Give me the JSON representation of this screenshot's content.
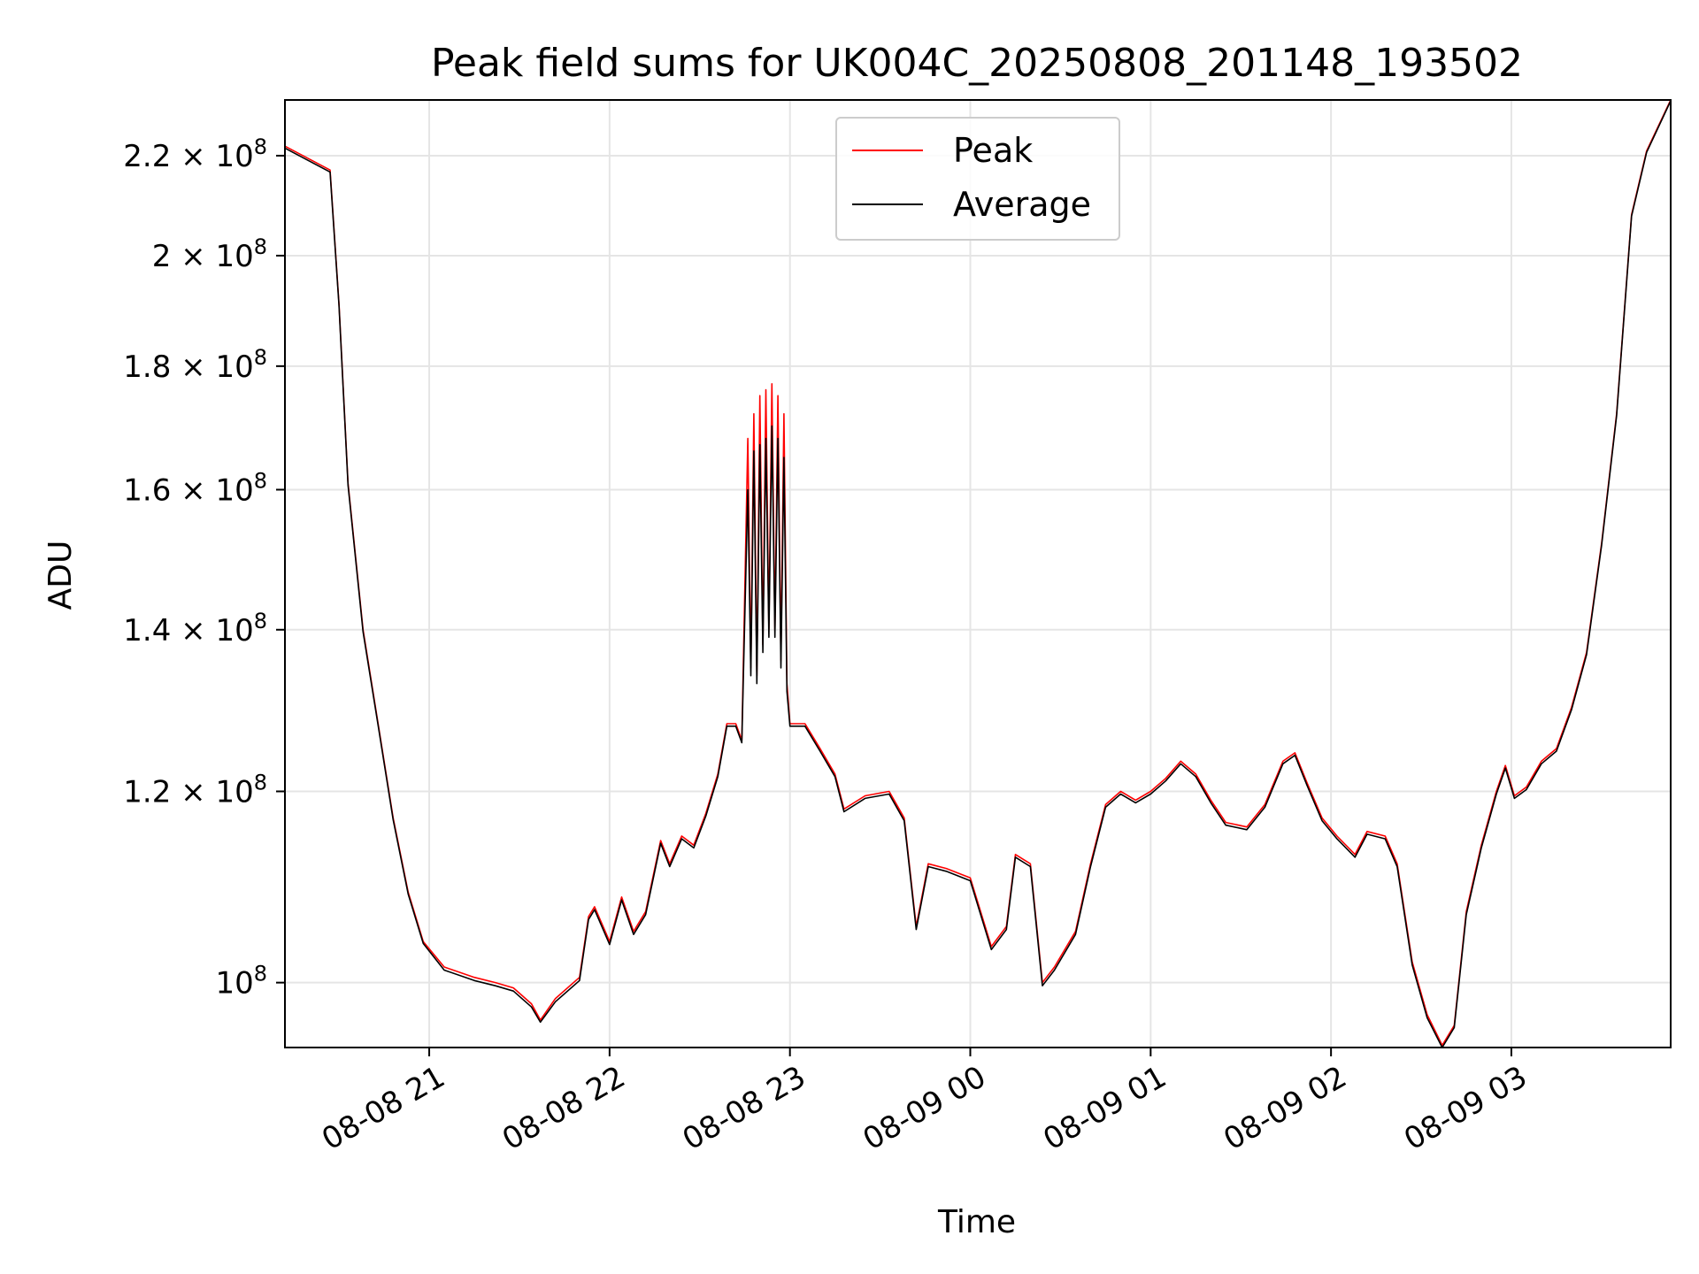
{
  "chart_data": {
    "type": "line",
    "title": "Peak field sums for UK004C_20250808_201148_193502",
    "xlabel": "Time",
    "ylabel": "ADU",
    "x_scale": "time",
    "y_scale": "log",
    "xlim": [
      "2025-08-08 20:12",
      "2025-08-09 03:53"
    ],
    "ylim": [
      94000000,
      232000000
    ],
    "grid": true,
    "legend": "top-center",
    "x_ticks": [
      {
        "value": "2025-08-08 21:00",
        "label": "08-08 21"
      },
      {
        "value": "2025-08-08 22:00",
        "label": "08-08 22"
      },
      {
        "value": "2025-08-08 23:00",
        "label": "08-08 23"
      },
      {
        "value": "2025-08-09 00:00",
        "label": "08-09 00"
      },
      {
        "value": "2025-08-09 01:00",
        "label": "08-09 01"
      },
      {
        "value": "2025-08-09 02:00",
        "label": "08-09 02"
      },
      {
        "value": "2025-08-09 03:00",
        "label": "08-09 03"
      }
    ],
    "y_ticks": [
      {
        "value": 100000000,
        "mantissa": "",
        "exponent": "8",
        "label": "10^8"
      },
      {
        "value": 120000000,
        "mantissa": "1.2",
        "exponent": "8",
        "label": "1.2 × 10^8"
      },
      {
        "value": 140000000,
        "mantissa": "1.4",
        "exponent": "8",
        "label": "1.4 × 10^8"
      },
      {
        "value": 160000000,
        "mantissa": "1.6",
        "exponent": "8",
        "label": "1.6 × 10^8"
      },
      {
        "value": 180000000,
        "mantissa": "1.8",
        "exponent": "8",
        "label": "1.8 × 10^8"
      },
      {
        "value": 200000000,
        "mantissa": "2",
        "exponent": "8",
        "label": "2 × 10^8"
      },
      {
        "value": 220000000,
        "mantissa": "2.2",
        "exponent": "8",
        "label": "2.2 × 10^8"
      }
    ],
    "series": [
      {
        "name": "Peak",
        "color": "#ff0000",
        "points": [
          [
            "2025-08-08 20:12",
            222000000
          ],
          [
            "2025-08-08 20:27",
            217000000
          ],
          [
            "2025-08-08 20:30",
            191000000
          ],
          [
            "2025-08-08 20:33",
            161000000
          ],
          [
            "2025-08-08 20:38",
            140000000
          ],
          [
            "2025-08-08 20:43",
            128000000
          ],
          [
            "2025-08-08 20:48",
            117000000
          ],
          [
            "2025-08-08 20:53",
            109000000
          ],
          [
            "2025-08-08 20:58",
            104000000
          ],
          [
            "2025-08-08 21:05",
            101500000
          ],
          [
            "2025-08-08 21:15",
            100500000
          ],
          [
            "2025-08-08 21:22",
            100000000
          ],
          [
            "2025-08-08 21:28",
            99500000
          ],
          [
            "2025-08-08 21:34",
            98000000
          ],
          [
            "2025-08-08 21:37",
            96500000
          ],
          [
            "2025-08-08 21:42",
            98500000
          ],
          [
            "2025-08-08 21:50",
            100500000
          ],
          [
            "2025-08-08 21:53",
            106500000
          ],
          [
            "2025-08-08 21:55",
            107500000
          ],
          [
            "2025-08-08 22:00",
            104000000
          ],
          [
            "2025-08-08 22:04",
            108500000
          ],
          [
            "2025-08-08 22:08",
            105000000
          ],
          [
            "2025-08-08 22:12",
            107000000
          ],
          [
            "2025-08-08 22:17",
            114500000
          ],
          [
            "2025-08-08 22:20",
            112000000
          ],
          [
            "2025-08-08 22:24",
            115000000
          ],
          [
            "2025-08-08 22:28",
            114000000
          ],
          [
            "2025-08-08 22:32",
            117500000
          ],
          [
            "2025-08-08 22:36",
            122000000
          ],
          [
            "2025-08-08 22:39",
            128000000
          ],
          [
            "2025-08-08 22:42",
            128000000
          ],
          [
            "2025-08-08 22:44",
            126000000
          ],
          [
            "2025-08-08 22:46",
            168000000
          ],
          [
            "2025-08-08 22:47",
            135000000
          ],
          [
            "2025-08-08 22:48",
            172000000
          ],
          [
            "2025-08-08 22:49",
            134000000
          ],
          [
            "2025-08-08 22:50",
            175000000
          ],
          [
            "2025-08-08 22:51",
            138000000
          ],
          [
            "2025-08-08 22:52",
            176000000
          ],
          [
            "2025-08-08 22:53",
            140000000
          ],
          [
            "2025-08-08 22:54",
            177000000
          ],
          [
            "2025-08-08 22:55",
            140000000
          ],
          [
            "2025-08-08 22:56",
            175000000
          ],
          [
            "2025-08-08 22:57",
            136000000
          ],
          [
            "2025-08-08 22:58",
            172000000
          ],
          [
            "2025-08-08 22:59",
            133000000
          ],
          [
            "2025-08-08 23:00",
            128000000
          ],
          [
            "2025-08-08 23:05",
            128000000
          ],
          [
            "2025-08-08 23:10",
            125000000
          ],
          [
            "2025-08-08 23:15",
            122000000
          ],
          [
            "2025-08-08 23:18",
            118000000
          ],
          [
            "2025-08-08 23:25",
            119500000
          ],
          [
            "2025-08-08 23:33",
            120000000
          ],
          [
            "2025-08-08 23:38",
            117000000
          ],
          [
            "2025-08-08 23:42",
            105500000
          ],
          [
            "2025-08-08 23:46",
            112000000
          ],
          [
            "2025-08-08 23:52",
            111500000
          ],
          [
            "2025-08-09 00:00",
            110500000
          ],
          [
            "2025-08-09 00:07",
            103500000
          ],
          [
            "2025-08-09 00:12",
            105500000
          ],
          [
            "2025-08-09 00:15",
            113000000
          ],
          [
            "2025-08-09 00:20",
            112000000
          ],
          [
            "2025-08-09 00:24",
            100000000
          ],
          [
            "2025-08-09 00:28",
            101500000
          ],
          [
            "2025-08-09 00:35",
            105000000
          ],
          [
            "2025-08-09 00:40",
            112000000
          ],
          [
            "2025-08-09 00:45",
            118500000
          ],
          [
            "2025-08-09 00:50",
            120000000
          ],
          [
            "2025-08-09 00:55",
            119000000
          ],
          [
            "2025-08-09 01:00",
            120000000
          ],
          [
            "2025-08-09 01:05",
            121500000
          ],
          [
            "2025-08-09 01:10",
            123500000
          ],
          [
            "2025-08-09 01:15",
            122000000
          ],
          [
            "2025-08-09 01:20",
            119000000
          ],
          [
            "2025-08-09 01:25",
            116500000
          ],
          [
            "2025-08-09 01:32",
            116000000
          ],
          [
            "2025-08-09 01:38",
            118500000
          ],
          [
            "2025-08-09 01:44",
            123500000
          ],
          [
            "2025-08-09 01:48",
            124500000
          ],
          [
            "2025-08-09 01:52",
            121000000
          ],
          [
            "2025-08-09 01:57",
            117000000
          ],
          [
            "2025-08-09 02:02",
            115000000
          ],
          [
            "2025-08-09 02:08",
            113000000
          ],
          [
            "2025-08-09 02:12",
            115500000
          ],
          [
            "2025-08-09 02:18",
            115000000
          ],
          [
            "2025-08-09 02:22",
            112000000
          ],
          [
            "2025-08-09 02:27",
            102000000
          ],
          [
            "2025-08-09 02:32",
            97000000
          ],
          [
            "2025-08-09 02:37",
            94200000
          ],
          [
            "2025-08-09 02:41",
            96000000
          ],
          [
            "2025-08-09 02:45",
            107000000
          ],
          [
            "2025-08-09 02:50",
            114000000
          ],
          [
            "2025-08-09 02:55",
            120000000
          ],
          [
            "2025-08-09 02:58",
            123000000
          ],
          [
            "2025-08-09 03:01",
            119500000
          ],
          [
            "2025-08-09 03:05",
            120500000
          ],
          [
            "2025-08-09 03:10",
            123500000
          ],
          [
            "2025-08-09 03:15",
            125000000
          ],
          [
            "2025-08-09 03:20",
            130000000
          ],
          [
            "2025-08-09 03:25",
            137000000
          ],
          [
            "2025-08-09 03:30",
            152000000
          ],
          [
            "2025-08-09 03:35",
            172000000
          ],
          [
            "2025-08-09 03:40",
            208000000
          ],
          [
            "2025-08-09 03:45",
            221000000
          ],
          [
            "2025-08-09 03:53",
            232000000
          ]
        ]
      },
      {
        "name": "Average",
        "color": "#000000",
        "points": [
          [
            "2025-08-08 20:12",
            221600000
          ],
          [
            "2025-08-08 20:27",
            216600000
          ],
          [
            "2025-08-08 20:30",
            190700000
          ],
          [
            "2025-08-08 20:33",
            160700000
          ],
          [
            "2025-08-08 20:38",
            139700000
          ],
          [
            "2025-08-08 20:43",
            127800000
          ],
          [
            "2025-08-08 20:48",
            116800000
          ],
          [
            "2025-08-08 20:53",
            108800000
          ],
          [
            "2025-08-08 20:58",
            103800000
          ],
          [
            "2025-08-08 21:05",
            101200000
          ],
          [
            "2025-08-08 21:15",
            100200000
          ],
          [
            "2025-08-08 21:22",
            99700000
          ],
          [
            "2025-08-08 21:28",
            99200000
          ],
          [
            "2025-08-08 21:34",
            97700000
          ],
          [
            "2025-08-08 21:37",
            96300000
          ],
          [
            "2025-08-08 21:42",
            98200000
          ],
          [
            "2025-08-08 21:50",
            100200000
          ],
          [
            "2025-08-08 21:53",
            106200000
          ],
          [
            "2025-08-08 21:55",
            107200000
          ],
          [
            "2025-08-08 22:00",
            103700000
          ],
          [
            "2025-08-08 22:04",
            108200000
          ],
          [
            "2025-08-08 22:08",
            104700000
          ],
          [
            "2025-08-08 22:12",
            106700000
          ],
          [
            "2025-08-08 22:17",
            114200000
          ],
          [
            "2025-08-08 22:20",
            111700000
          ],
          [
            "2025-08-08 22:24",
            114700000
          ],
          [
            "2025-08-08 22:28",
            113700000
          ],
          [
            "2025-08-08 22:32",
            117200000
          ],
          [
            "2025-08-08 22:36",
            121700000
          ],
          [
            "2025-08-08 22:39",
            127700000
          ],
          [
            "2025-08-08 22:42",
            127700000
          ],
          [
            "2025-08-08 22:44",
            125700000
          ],
          [
            "2025-08-08 22:46",
            160000000
          ],
          [
            "2025-08-08 22:47",
            134000000
          ],
          [
            "2025-08-08 22:48",
            166000000
          ],
          [
            "2025-08-08 22:49",
            133000000
          ],
          [
            "2025-08-08 22:50",
            167000000
          ],
          [
            "2025-08-08 22:51",
            137000000
          ],
          [
            "2025-08-08 22:52",
            168000000
          ],
          [
            "2025-08-08 22:53",
            139000000
          ],
          [
            "2025-08-08 22:54",
            170000000
          ],
          [
            "2025-08-08 22:55",
            139000000
          ],
          [
            "2025-08-08 22:56",
            168000000
          ],
          [
            "2025-08-08 22:57",
            135000000
          ],
          [
            "2025-08-08 22:58",
            165000000
          ],
          [
            "2025-08-08 22:59",
            132000000
          ],
          [
            "2025-08-08 23:00",
            127700000
          ],
          [
            "2025-08-08 23:05",
            127700000
          ],
          [
            "2025-08-08 23:10",
            124700000
          ],
          [
            "2025-08-08 23:15",
            121700000
          ],
          [
            "2025-08-08 23:18",
            117700000
          ],
          [
            "2025-08-08 23:25",
            119200000
          ],
          [
            "2025-08-08 23:33",
            119700000
          ],
          [
            "2025-08-08 23:38",
            116700000
          ],
          [
            "2025-08-08 23:42",
            105200000
          ],
          [
            "2025-08-08 23:46",
            111700000
          ],
          [
            "2025-08-08 23:52",
            111200000
          ],
          [
            "2025-08-09 00:00",
            110200000
          ],
          [
            "2025-08-09 00:07",
            103200000
          ],
          [
            "2025-08-09 00:12",
            105200000
          ],
          [
            "2025-08-09 00:15",
            112700000
          ],
          [
            "2025-08-09 00:20",
            111700000
          ],
          [
            "2025-08-09 00:24",
            99700000
          ],
          [
            "2025-08-09 00:28",
            101200000
          ],
          [
            "2025-08-09 00:35",
            104700000
          ],
          [
            "2025-08-09 00:40",
            111700000
          ],
          [
            "2025-08-09 00:45",
            118200000
          ],
          [
            "2025-08-09 00:50",
            119700000
          ],
          [
            "2025-08-09 00:55",
            118700000
          ],
          [
            "2025-08-09 01:00",
            119700000
          ],
          [
            "2025-08-09 01:05",
            121200000
          ],
          [
            "2025-08-09 01:10",
            123200000
          ],
          [
            "2025-08-09 01:15",
            121700000
          ],
          [
            "2025-08-09 01:20",
            118700000
          ],
          [
            "2025-08-09 01:25",
            116200000
          ],
          [
            "2025-08-09 01:32",
            115700000
          ],
          [
            "2025-08-09 01:38",
            118200000
          ],
          [
            "2025-08-09 01:44",
            123200000
          ],
          [
            "2025-08-09 01:48",
            124200000
          ],
          [
            "2025-08-09 01:52",
            120700000
          ],
          [
            "2025-08-09 01:57",
            116700000
          ],
          [
            "2025-08-09 02:02",
            114700000
          ],
          [
            "2025-08-09 02:08",
            112700000
          ],
          [
            "2025-08-09 02:12",
            115200000
          ],
          [
            "2025-08-09 02:18",
            114700000
          ],
          [
            "2025-08-09 02:22",
            111700000
          ],
          [
            "2025-08-09 02:27",
            101700000
          ],
          [
            "2025-08-09 02:32",
            96700000
          ],
          [
            "2025-08-09 02:37",
            94000000
          ],
          [
            "2025-08-09 02:41",
            95800000
          ],
          [
            "2025-08-09 02:45",
            106700000
          ],
          [
            "2025-08-09 02:50",
            113700000
          ],
          [
            "2025-08-09 02:55",
            119700000
          ],
          [
            "2025-08-09 02:58",
            122700000
          ],
          [
            "2025-08-09 03:01",
            119200000
          ],
          [
            "2025-08-09 03:05",
            120200000
          ],
          [
            "2025-08-09 03:10",
            123200000
          ],
          [
            "2025-08-09 03:15",
            124700000
          ],
          [
            "2025-08-09 03:20",
            129700000
          ],
          [
            "2025-08-09 03:25",
            136700000
          ],
          [
            "2025-08-09 03:30",
            151700000
          ],
          [
            "2025-08-09 03:35",
            171700000
          ],
          [
            "2025-08-09 03:40",
            207700000
          ],
          [
            "2025-08-09 03:45",
            220700000
          ],
          [
            "2025-08-09 03:53",
            231800000
          ]
        ]
      }
    ]
  }
}
